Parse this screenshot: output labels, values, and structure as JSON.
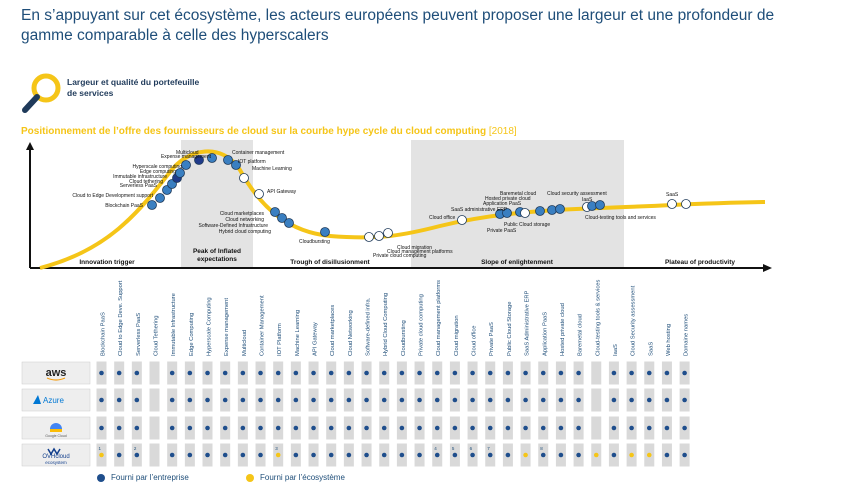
{
  "headline": "En s’appuyant sur cet écosystème, les acteurs européens peuvent proposer une largeur et une profondeur de gamme comparable à celle des hyperscalers",
  "feature": {
    "label_line1": "Largeur et qualité du portefeuille",
    "label_line2": "de services",
    "icon": "magnifier-icon",
    "icon_color": "#f5c518"
  },
  "chart_title": "Positionnement de l’offre des fournisseurs de cloud sur la courbe hype cycle du cloud computing",
  "chart_year": "[2018]",
  "colors": {
    "enterprise": "#1f4e8c",
    "ecosystem": "#f5c518",
    "curve": "#f5c518",
    "shade": "#e3e3e3",
    "cell": "#d9d9d9"
  },
  "phases": [
    "Innovation trigger",
    "Peak of Inflated expectations",
    "Trough of disillusionment",
    "Slope of enlightenment",
    "Plateau of productivity"
  ],
  "curve_labels": [
    "Blockchain PaaS",
    "Cloud to Edge Development support",
    "Serverless PaaS",
    "Cloud tethering",
    "Immutable infrastructure",
    "Edge computing",
    "Hyperscale computing",
    "Expense management",
    "Multicloud",
    "Container management",
    "IOT platform",
    "Machine Learning",
    "API Gateway",
    "Cloud marketplaces",
    "Cloud networking",
    "Software-Defined Infrastructure",
    "Hybrid cloud computing",
    "Cloudbursting",
    "Private cloud computing",
    "Cloud migration",
    "Cloud management platforms",
    "Cloud office",
    "SaaS administrative ERP",
    "Application PaaS",
    "Hosted private cloud",
    "Baremetal cloud",
    "Public Cloud storage",
    "Private PaaS",
    "Cloud security assessment",
    "IaaS",
    "Cloud-testing tools and services",
    "SaaS"
  ],
  "columns": [
    "Blockchain PaaS",
    "Cloud to Edge Deve. Support",
    "Serverless PaaS",
    "Cloud Tethering",
    "Immutable Infrastructure",
    "Edge Computing",
    "Hyperscale Computing",
    "Expense management",
    "Multicloud",
    "Container Management",
    "IOT Platform",
    "Machine Learning",
    "API Gateway",
    "Cloud marketplaces",
    "Cloud Networking",
    "Software-defined infra.",
    "Hybrid Cloud Computing",
    "Cloudbursting",
    "Private cloud computing",
    "Cloud management platforms",
    "Cloud migration",
    "Cloud office",
    "Private PaaS",
    "Public Cloud Storage",
    "SaaS Administrative ERP",
    "Application PaaS",
    "Hosted private cloud",
    "Baremetal cloud",
    "Cloud-testing tools & services",
    "IaaS",
    "Cloud Security assessment",
    "SaaS",
    "Web hosting",
    "Domaine names"
  ],
  "providers": [
    {
      "name": "aws",
      "label": "aws",
      "icon": "aws-logo",
      "row": "BBBEBBBBBBBBBBBBBBBBBBBBBBBBEBBBBB",
      "notes": [
        "",
        "",
        "",
        "",
        "",
        "",
        "",
        "",
        "",
        "",
        "",
        "",
        "",
        "",
        "",
        "",
        "",
        "",
        "",
        "",
        "",
        "",
        "",
        "",
        "",
        "",
        "",
        "",
        "",
        "",
        "",
        "",
        "",
        ""
      ]
    },
    {
      "name": "azure",
      "label": "Azure",
      "icon": "azure-logo",
      "row": "BBBEBBBBBBBBBBBBBBBBBBBBBBBBEBBBBB",
      "notes": [
        "",
        "",
        "",
        "",
        "",
        "",
        "",
        "",
        "",
        "",
        "",
        "",
        "",
        "",
        "",
        "",
        "",
        "",
        "",
        "",
        "",
        "",
        "",
        "",
        "",
        "",
        "",
        "",
        "",
        "",
        "",
        "",
        "",
        ""
      ]
    },
    {
      "name": "google-cloud",
      "label": "Google Cloud",
      "icon": "google-cloud-logo",
      "row": "BBBEBBBBBBBBBBBBBBBBBBBBBBBBEBBBBB",
      "notes": [
        "",
        "",
        "",
        "",
        "",
        "",
        "",
        "",
        "",
        "",
        "",
        "",
        "",
        "",
        "",
        "",
        "",
        "",
        "",
        "",
        "",
        "",
        "",
        "",
        "",
        "",
        "",
        "",
        "",
        "",
        "",
        "",
        "",
        ""
      ]
    },
    {
      "name": "ovhcloud",
      "label": "OVHcloud",
      "label2": "ecosystem",
      "icon": "ovhcloud-logo",
      "row": "YBBEBBBBBBYBBBBBBBBBBBBBYBBBYBYYBB",
      "notes": [
        "1",
        "",
        "2",
        "",
        "",
        "",
        "",
        "",
        "",
        "",
        "3",
        "",
        "",
        "",
        "",
        "",
        "",
        "",
        "",
        "4",
        "5",
        "6",
        "7",
        "",
        "",
        "8",
        "",
        "",
        "",
        "",
        "",
        "",
        "",
        ""
      ]
    }
  ],
  "legend": {
    "enterprise": "Fourni par l’entreprise",
    "ecosystem": "Fourni par l’écosystème"
  }
}
